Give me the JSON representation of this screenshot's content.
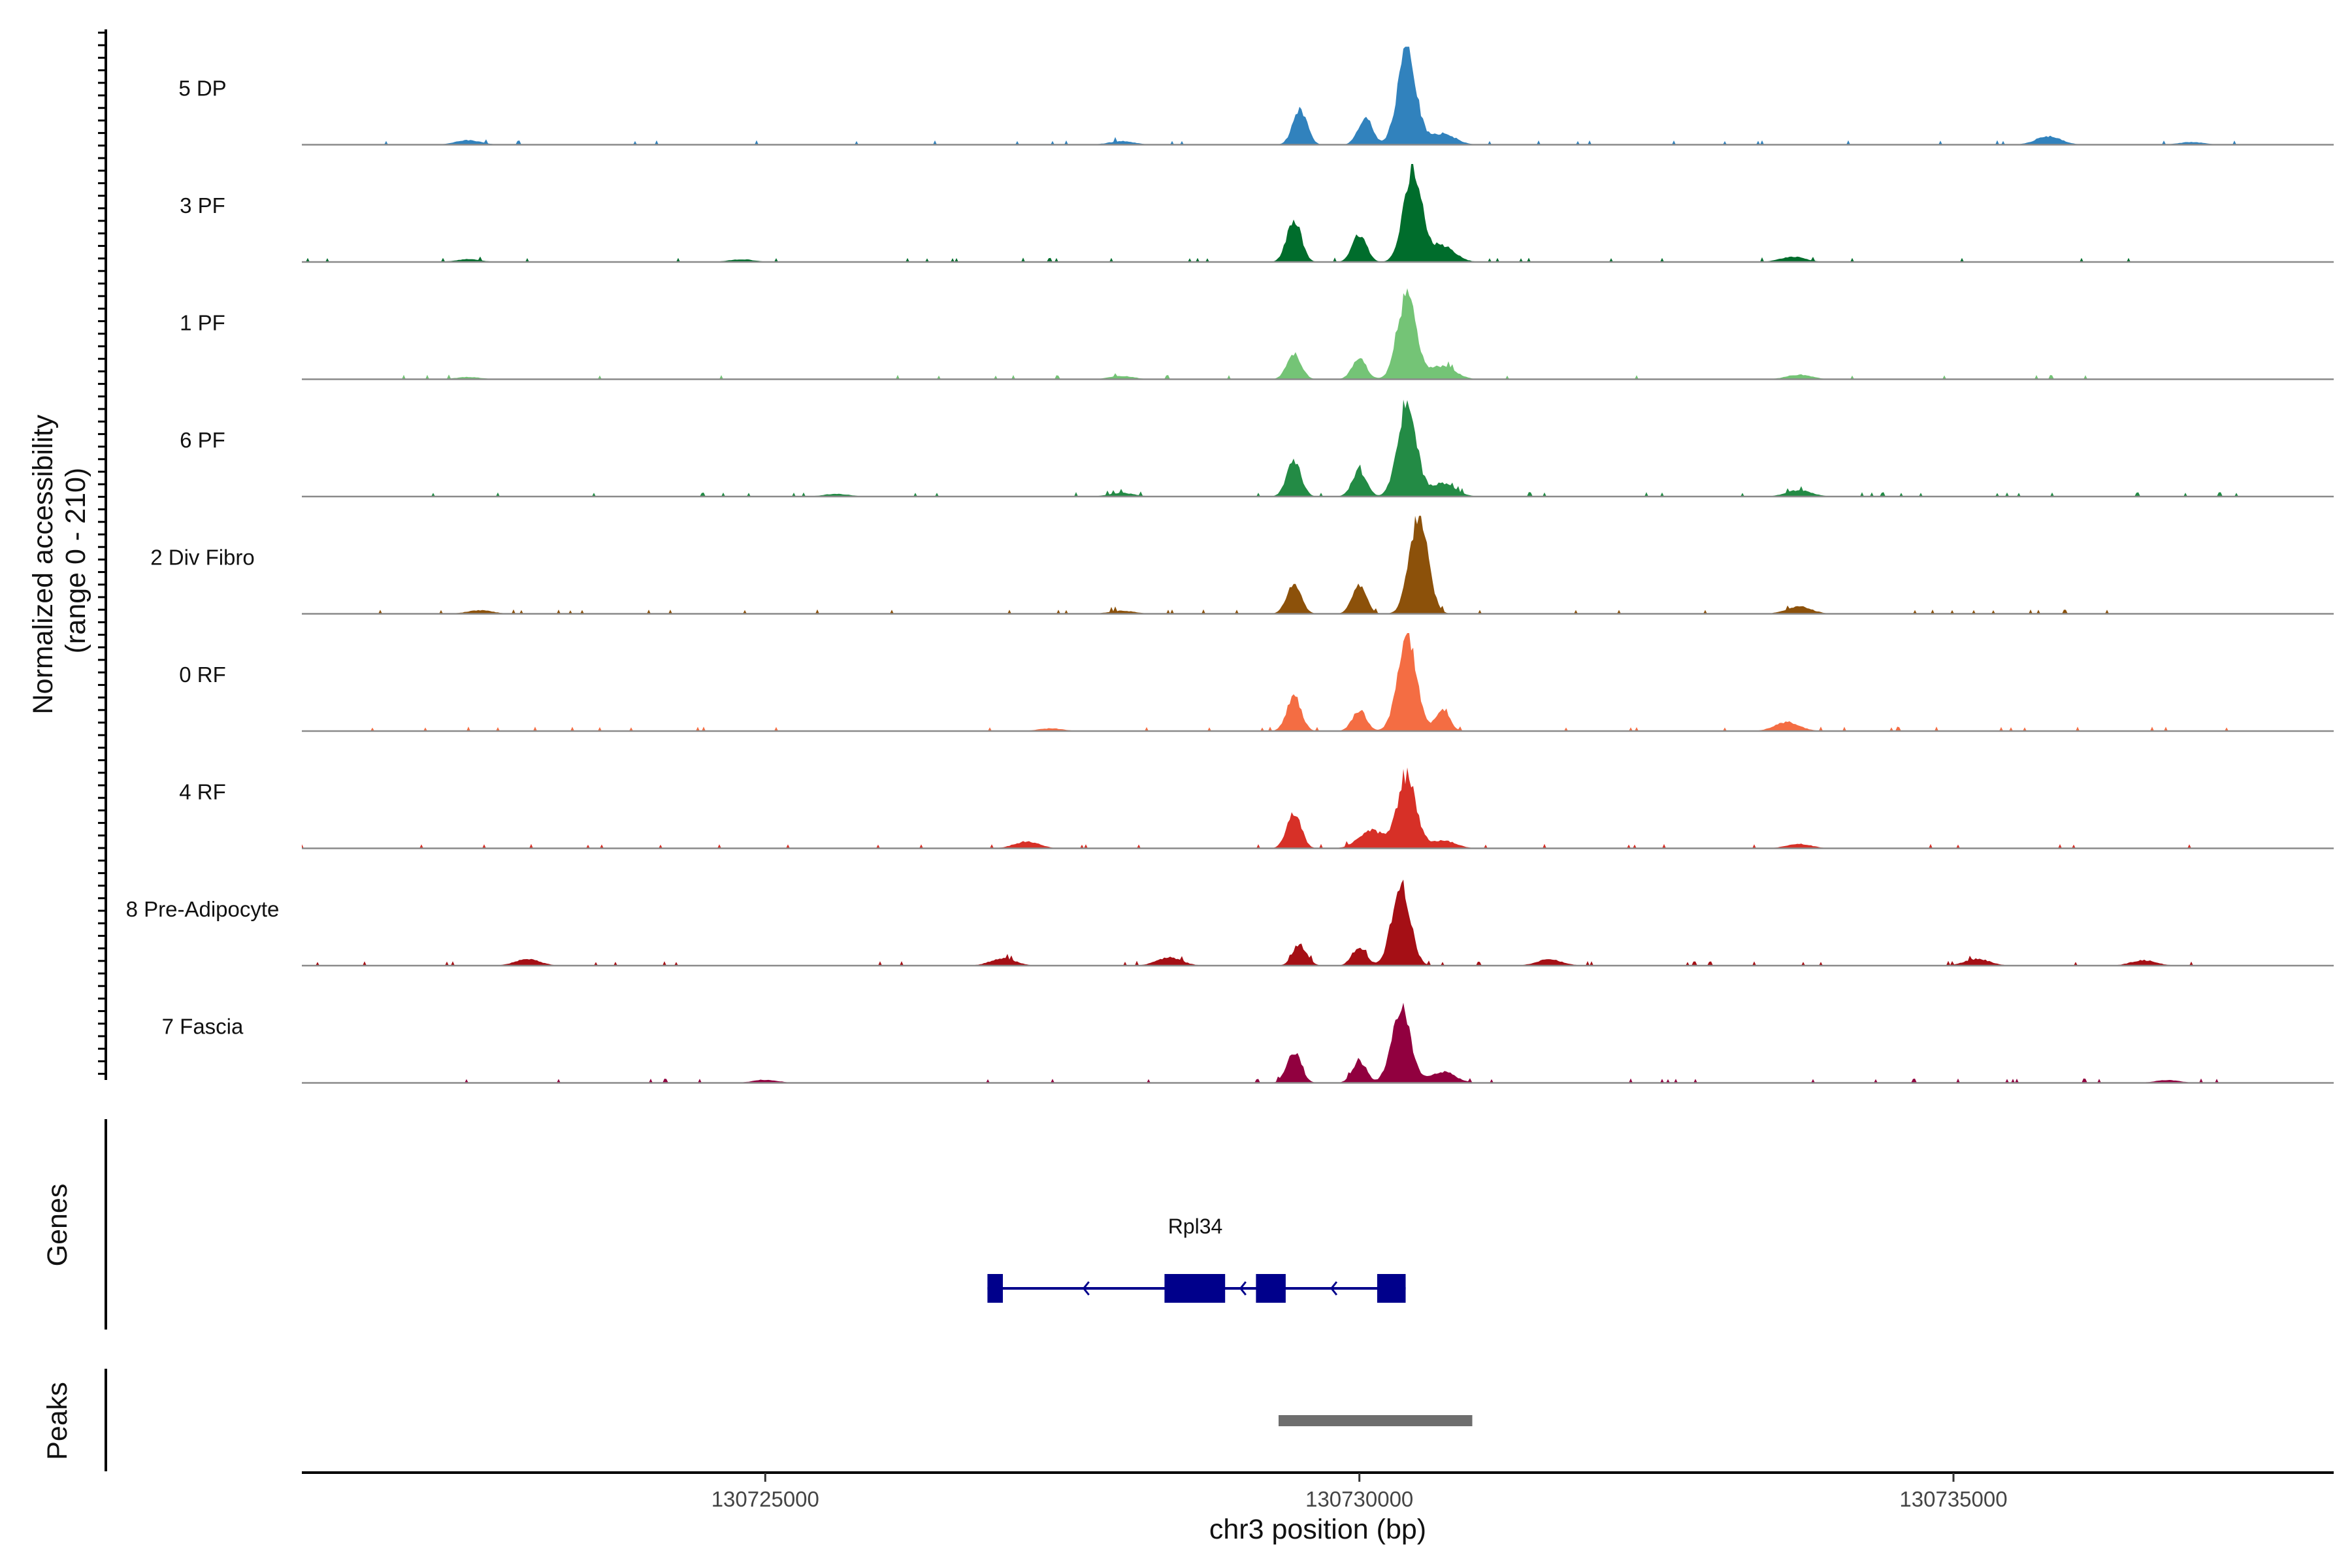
{
  "chart_data": {
    "type": "area",
    "ylabel": "Normalized accessibility\n(range 0 - 210)",
    "ylabel_lines": [
      "Normalized accessibility",
      "(range 0 - 210)"
    ],
    "xlabel": "chr3 position (bp)",
    "xlim": [
      130721100,
      130738200
    ],
    "ylim": [
      0,
      210
    ],
    "x_ticks": [
      130725000,
      130730000,
      130735000
    ],
    "x_tick_labels": [
      "130725000",
      "130730000",
      "130735000"
    ],
    "gene_track_label": "Genes",
    "peak_track_label": "Peaks",
    "groups": [
      {
        "name": "5 DP",
        "color": "#3182bd",
        "peaks": [
          [
            130729500,
            78
          ],
          [
            130730050,
            62
          ],
          [
            130730400,
            210
          ],
          [
            130730700,
            25
          ],
          [
            130722500,
            10
          ],
          [
            130735800,
            19
          ],
          [
            130737000,
            6
          ],
          [
            130728000,
            8
          ]
        ]
      },
      {
        "name": "3 PF",
        "color": "#006d2c",
        "peaks": [
          [
            130729450,
            95
          ],
          [
            130730000,
            62
          ],
          [
            130730450,
            200
          ],
          [
            130730700,
            35
          ],
          [
            130733650,
            12
          ],
          [
            130722500,
            6
          ],
          [
            130724800,
            6
          ]
        ]
      },
      {
        "name": "1 PF",
        "color": "#74c476",
        "peaks": [
          [
            130729450,
            58
          ],
          [
            130730000,
            45
          ],
          [
            130730400,
            188
          ],
          [
            130730700,
            30
          ],
          [
            130728000,
            7
          ],
          [
            130733700,
            10
          ],
          [
            130722500,
            5
          ]
        ]
      },
      {
        "name": "6 PF",
        "color": "#238b45",
        "peaks": [
          [
            130729450,
            78
          ],
          [
            130730000,
            58
          ],
          [
            130730400,
            205
          ],
          [
            130730700,
            30
          ],
          [
            130733700,
            14
          ],
          [
            130728000,
            8
          ],
          [
            130725600,
            6
          ]
        ]
      },
      {
        "name": "2 Div Fibro",
        "color": "#8c510a",
        "peaks": [
          [
            130729450,
            68
          ],
          [
            130730000,
            62
          ],
          [
            130730500,
            220
          ],
          [
            130733700,
            16
          ],
          [
            130722600,
            8
          ],
          [
            130728000,
            7
          ]
        ]
      },
      {
        "name": "0 RF",
        "color": "#f46d43",
        "peaks": [
          [
            130729450,
            78
          ],
          [
            130730000,
            46
          ],
          [
            130730400,
            215
          ],
          [
            130730700,
            45
          ],
          [
            130733600,
            20
          ],
          [
            130727400,
            6
          ]
        ]
      },
      {
        "name": "4 RF",
        "color": "#d73027",
        "peaks": [
          [
            130729450,
            80
          ],
          [
            130730100,
            40
          ],
          [
            130730400,
            160
          ],
          [
            130730700,
            18
          ],
          [
            130727200,
            15
          ],
          [
            130733700,
            10
          ]
        ]
      },
      {
        "name": "8 Pre-Adipocyte",
        "color": "#a50f15",
        "peaks": [
          [
            130729500,
            45
          ],
          [
            130730000,
            42
          ],
          [
            130730350,
            175
          ],
          [
            130728400,
            18
          ],
          [
            130731600,
            14
          ],
          [
            130723000,
            14
          ],
          [
            130727000,
            16
          ],
          [
            130735200,
            15
          ],
          [
            130736600,
            12
          ]
        ]
      },
      {
        "name": "7 Fascia",
        "color": "#91003f",
        "peaks": [
          [
            130729450,
            70
          ],
          [
            130730000,
            48
          ],
          [
            130730350,
            168
          ],
          [
            130730700,
            25
          ],
          [
            130725000,
            7
          ],
          [
            130736800,
            6
          ]
        ]
      }
    ],
    "genes": [
      {
        "name": "Rpl34",
        "strand": "-",
        "color": "#00008b",
        "start": 130726870,
        "end": 130730390,
        "exons": [
          [
            130726870,
            130727000
          ],
          [
            130728360,
            130728870
          ],
          [
            130729130,
            130729380
          ],
          [
            130730150,
            130730390
          ]
        ]
      }
    ],
    "peak_regions": [
      [
        130729320,
        130730950
      ]
    ],
    "peak_color": "#6e6e6e"
  }
}
